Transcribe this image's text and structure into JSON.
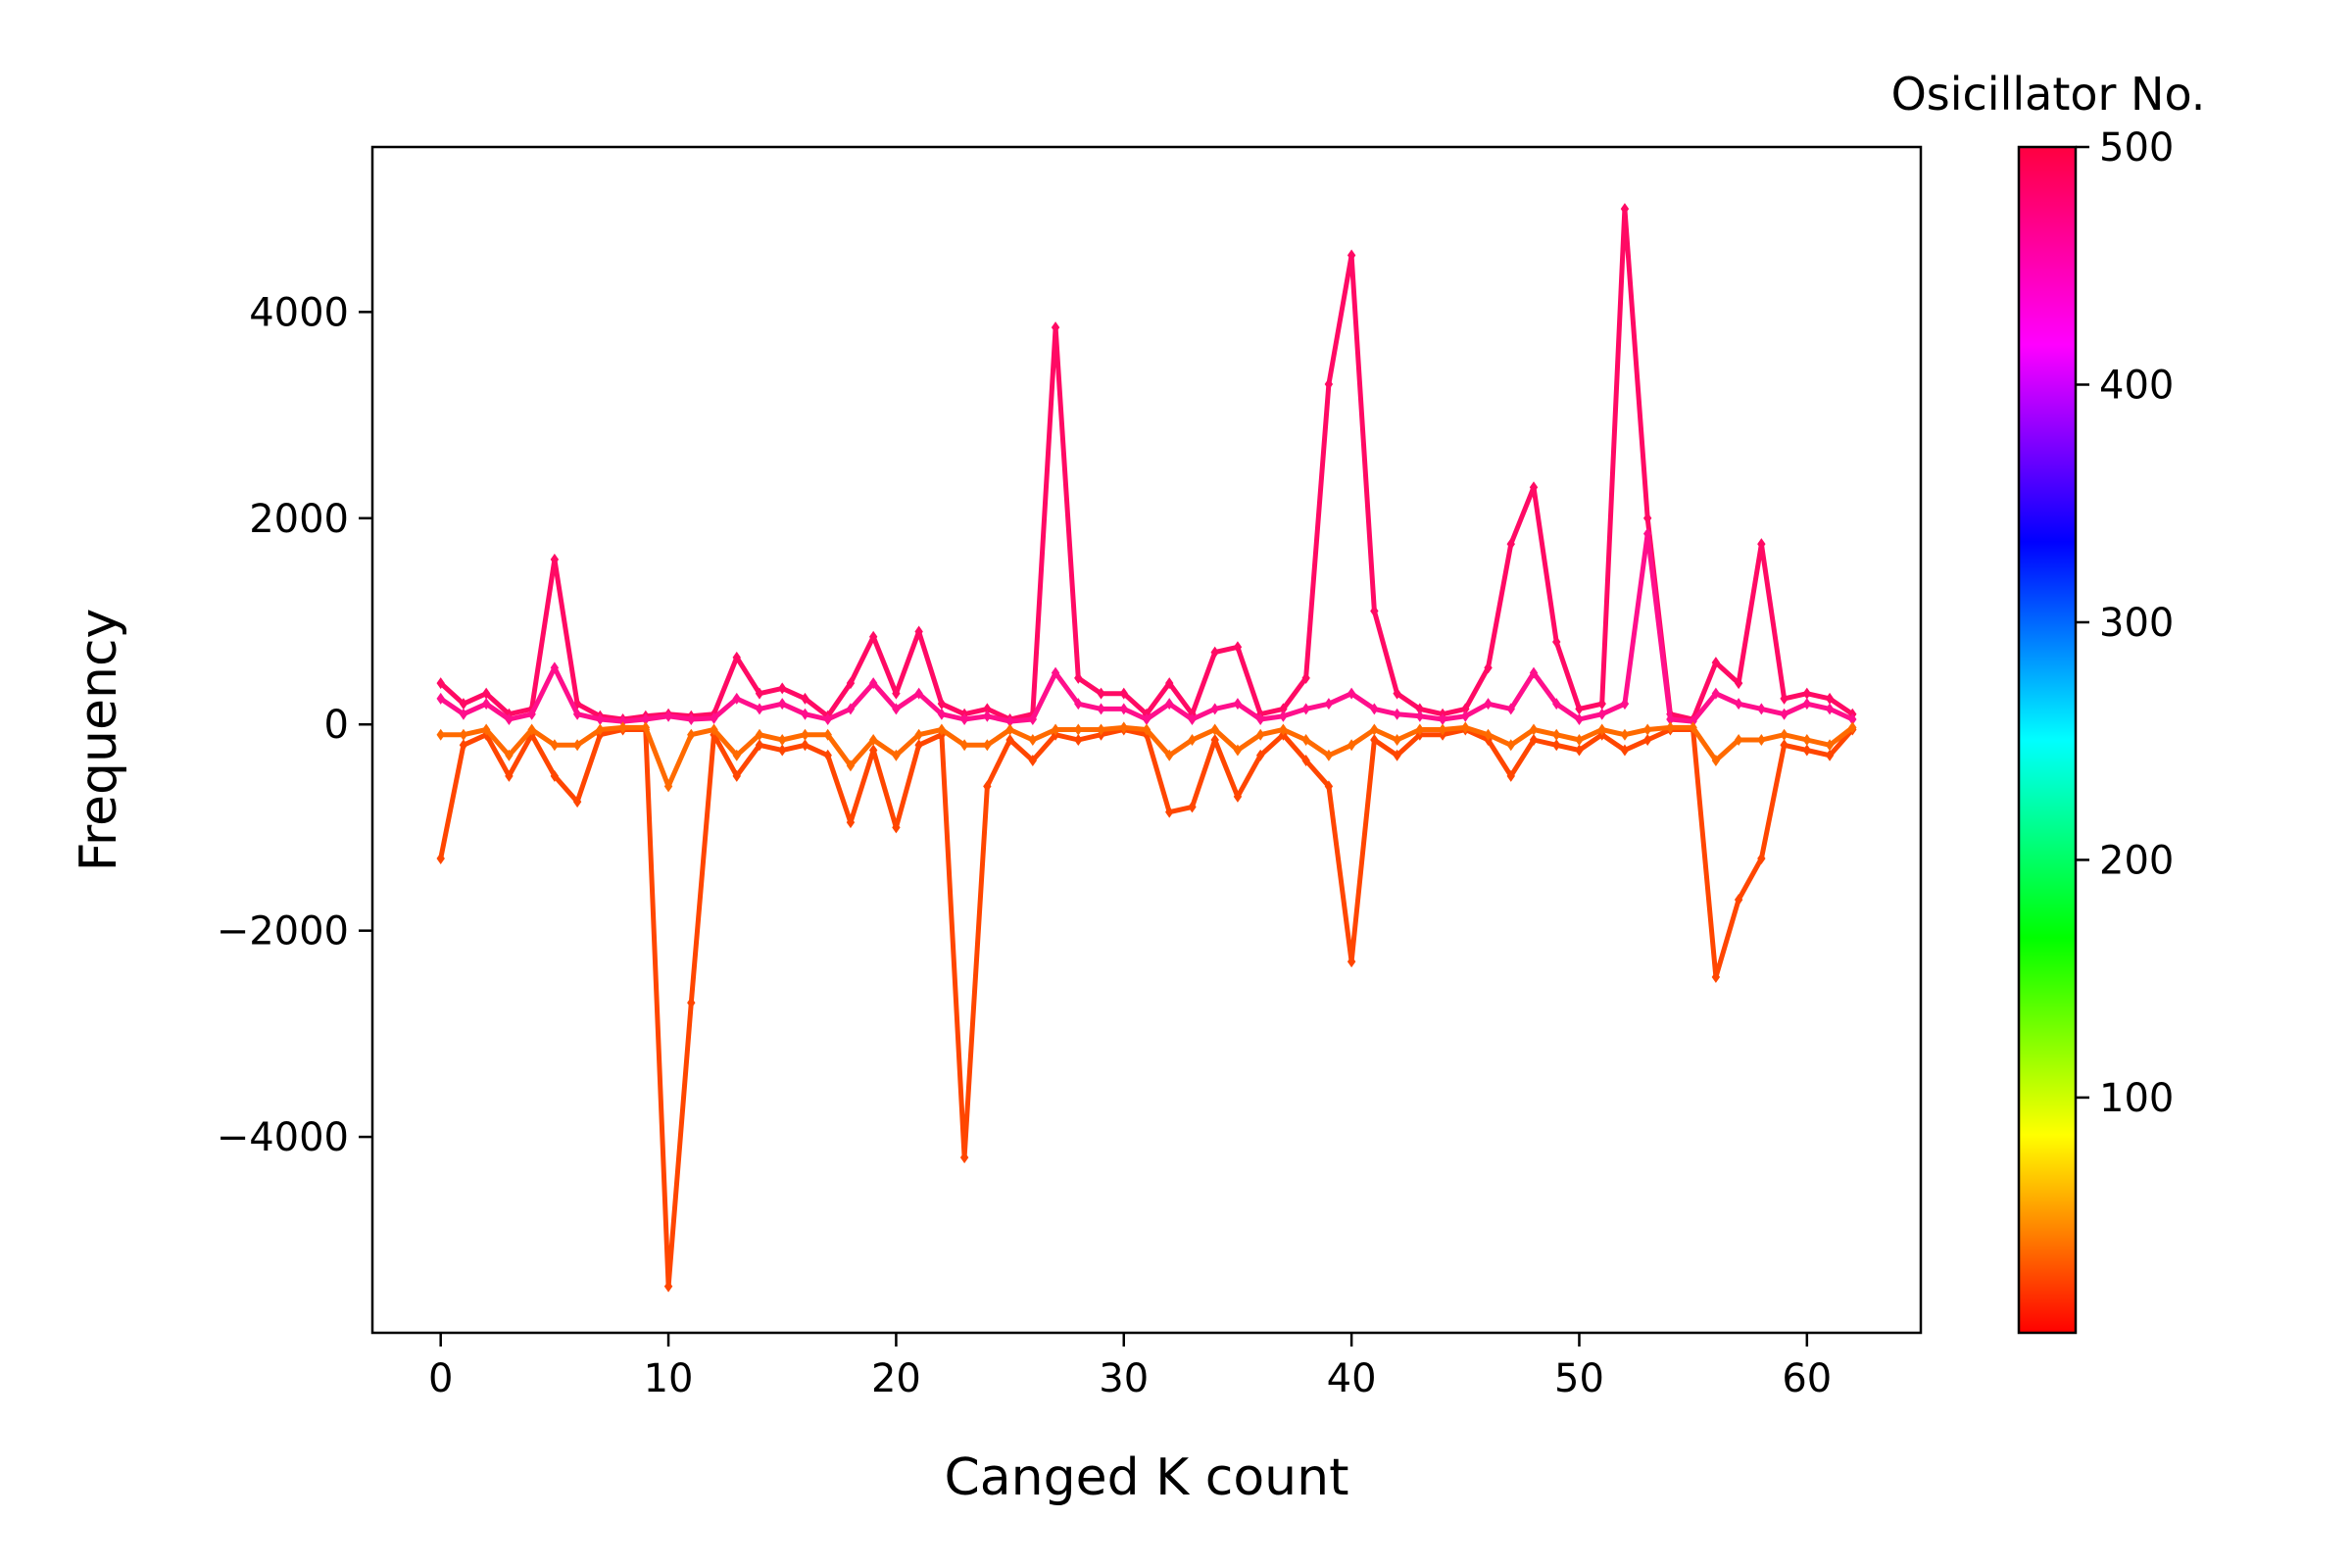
{
  "chart_data": {
    "type": "line",
    "xlabel": "Canged K count",
    "ylabel": "Frequency",
    "xlim": [
      -3,
      65
    ],
    "ylim": [
      -5900,
      5600
    ],
    "x_ticks": [
      0,
      10,
      20,
      30,
      40,
      50,
      60
    ],
    "x_tick_labels": [
      "0",
      "10",
      "20",
      "30",
      "40",
      "50",
      "60"
    ],
    "y_ticks": [
      -4000,
      -2000,
      0,
      2000,
      4000
    ],
    "y_tick_labels": [
      "−4000",
      "−2000",
      "0",
      "2000",
      "4000"
    ],
    "colorbar": {
      "title": "Osicillator No.",
      "range": [
        1,
        500
      ],
      "colormap": "gist_rainbow_r",
      "ticks": [
        100,
        200,
        300,
        400,
        500
      ],
      "tick_labels": [
        "100",
        "200",
        "300",
        "400",
        "500"
      ]
    },
    "series_colors": {
      "positive_series": "#ff0a64",
      "positive_small_series": "#ff0f8c",
      "negative_series": "#ff4600",
      "negative_small_series": "#ff6a00"
    },
    "series": [
      {
        "color": "#ff0a64",
        "values": [
          400,
          200,
          300,
          100,
          150,
          1600,
          200,
          80,
          50,
          80,
          100,
          80,
          100,
          650,
          300,
          350,
          250,
          80,
          400,
          850,
          300,
          900,
          200,
          100,
          150,
          50,
          100,
          3850,
          450,
          300,
          300,
          100,
          400,
          100,
          700,
          750,
          100,
          150,
          450,
          3300,
          4550,
          1100,
          300,
          150,
          100,
          150,
          550,
          1750,
          2300,
          800,
          150,
          200,
          5000,
          2000,
          100,
          50,
          600,
          400,
          1750,
          250,
          300,
          250,
          100
        ]
      },
      {
        "color": "#ff0f8c",
        "values": [
          250,
          100,
          200,
          50,
          100,
          550,
          100,
          50,
          30,
          50,
          80,
          50,
          60,
          250,
          150,
          200,
          100,
          50,
          150,
          400,
          150,
          300,
          100,
          50,
          80,
          30,
          50,
          500,
          200,
          150,
          150,
          50,
          200,
          50,
          150,
          200,
          50,
          80,
          150,
          200,
          300,
          150,
          100,
          80,
          50,
          80,
          200,
          150,
          500,
          200,
          50,
          100,
          200,
          1850,
          50,
          30,
          300,
          200,
          150,
          100,
          200,
          150,
          50
        ]
      },
      {
        "color": "#ff4600",
        "values": [
          -1300,
          -200,
          -100,
          -500,
          -100,
          -500,
          -750,
          -100,
          -50,
          -50,
          -5450,
          -2700,
          -100,
          -500,
          -200,
          -250,
          -200,
          -300,
          -950,
          -250,
          -1000,
          -200,
          -100,
          -4200,
          -600,
          -150,
          -350,
          -100,
          -150,
          -100,
          -50,
          -100,
          -850,
          -800,
          -150,
          -700,
          -300,
          -100,
          -350,
          -600,
          -2300,
          -150,
          -300,
          -100,
          -100,
          -50,
          -150,
          -500,
          -150,
          -200,
          -250,
          -100,
          -250,
          -150,
          -50,
          -50,
          -2450,
          -1700,
          -1300,
          -200,
          -250,
          -300,
          -50
        ]
      },
      {
        "color": "#ff6a00",
        "values": [
          -100,
          -100,
          -50,
          -300,
          -50,
          -200,
          -200,
          -50,
          -30,
          -30,
          -600,
          -100,
          -50,
          -300,
          -100,
          -150,
          -100,
          -100,
          -400,
          -150,
          -300,
          -100,
          -50,
          -200,
          -200,
          -50,
          -150,
          -50,
          -50,
          -50,
          -30,
          -50,
          -300,
          -150,
          -50,
          -250,
          -100,
          -50,
          -150,
          -300,
          -200,
          -50,
          -150,
          -50,
          -50,
          -30,
          -100,
          -200,
          -50,
          -100,
          -150,
          -50,
          -100,
          -50,
          -30,
          -30,
          -350,
          -150,
          -150,
          -100,
          -150,
          -200,
          -30
        ]
      }
    ]
  }
}
